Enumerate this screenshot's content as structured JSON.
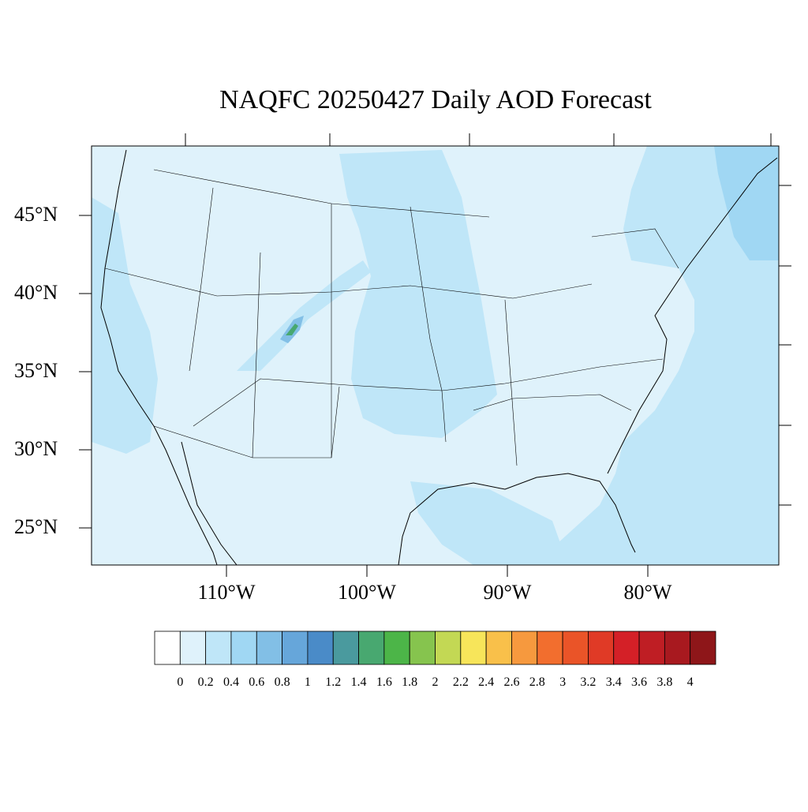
{
  "title": "NAQFC 20250427 Daily AOD Forecast",
  "map": {
    "projection": "lambert-conformal",
    "background_color": "#dff2fb",
    "lat_labels": [
      "45°N",
      "40°N",
      "35°N",
      "30°N",
      "25°N"
    ],
    "lon_labels": [
      "110°W",
      "100°W",
      "90°W",
      "80°W"
    ],
    "features": [
      "state-boundaries",
      "coastlines",
      "country-borders"
    ]
  },
  "colorbar": {
    "levels": [
      "0",
      "0.2",
      "0.4",
      "0.6",
      "0.8",
      "1",
      "1.2",
      "1.4",
      "1.6",
      "1.8",
      "2",
      "2.2",
      "2.4",
      "2.6",
      "2.8",
      "3",
      "3.2",
      "3.4",
      "3.6",
      "3.8",
      "4"
    ],
    "colors": [
      "#ffffff",
      "#dff2fb",
      "#bfe6f8",
      "#a0d7f3",
      "#82bfe6",
      "#66a6da",
      "#4a8bc8",
      "#4a9a9e",
      "#48a870",
      "#4cb548",
      "#86c44e",
      "#c3d854",
      "#f7e55a",
      "#f9c04a",
      "#f6993e",
      "#f26e2e",
      "#ea5428",
      "#e03a26",
      "#d42027",
      "#bf1e24",
      "#a8191f",
      "#8e1619"
    ]
  }
}
